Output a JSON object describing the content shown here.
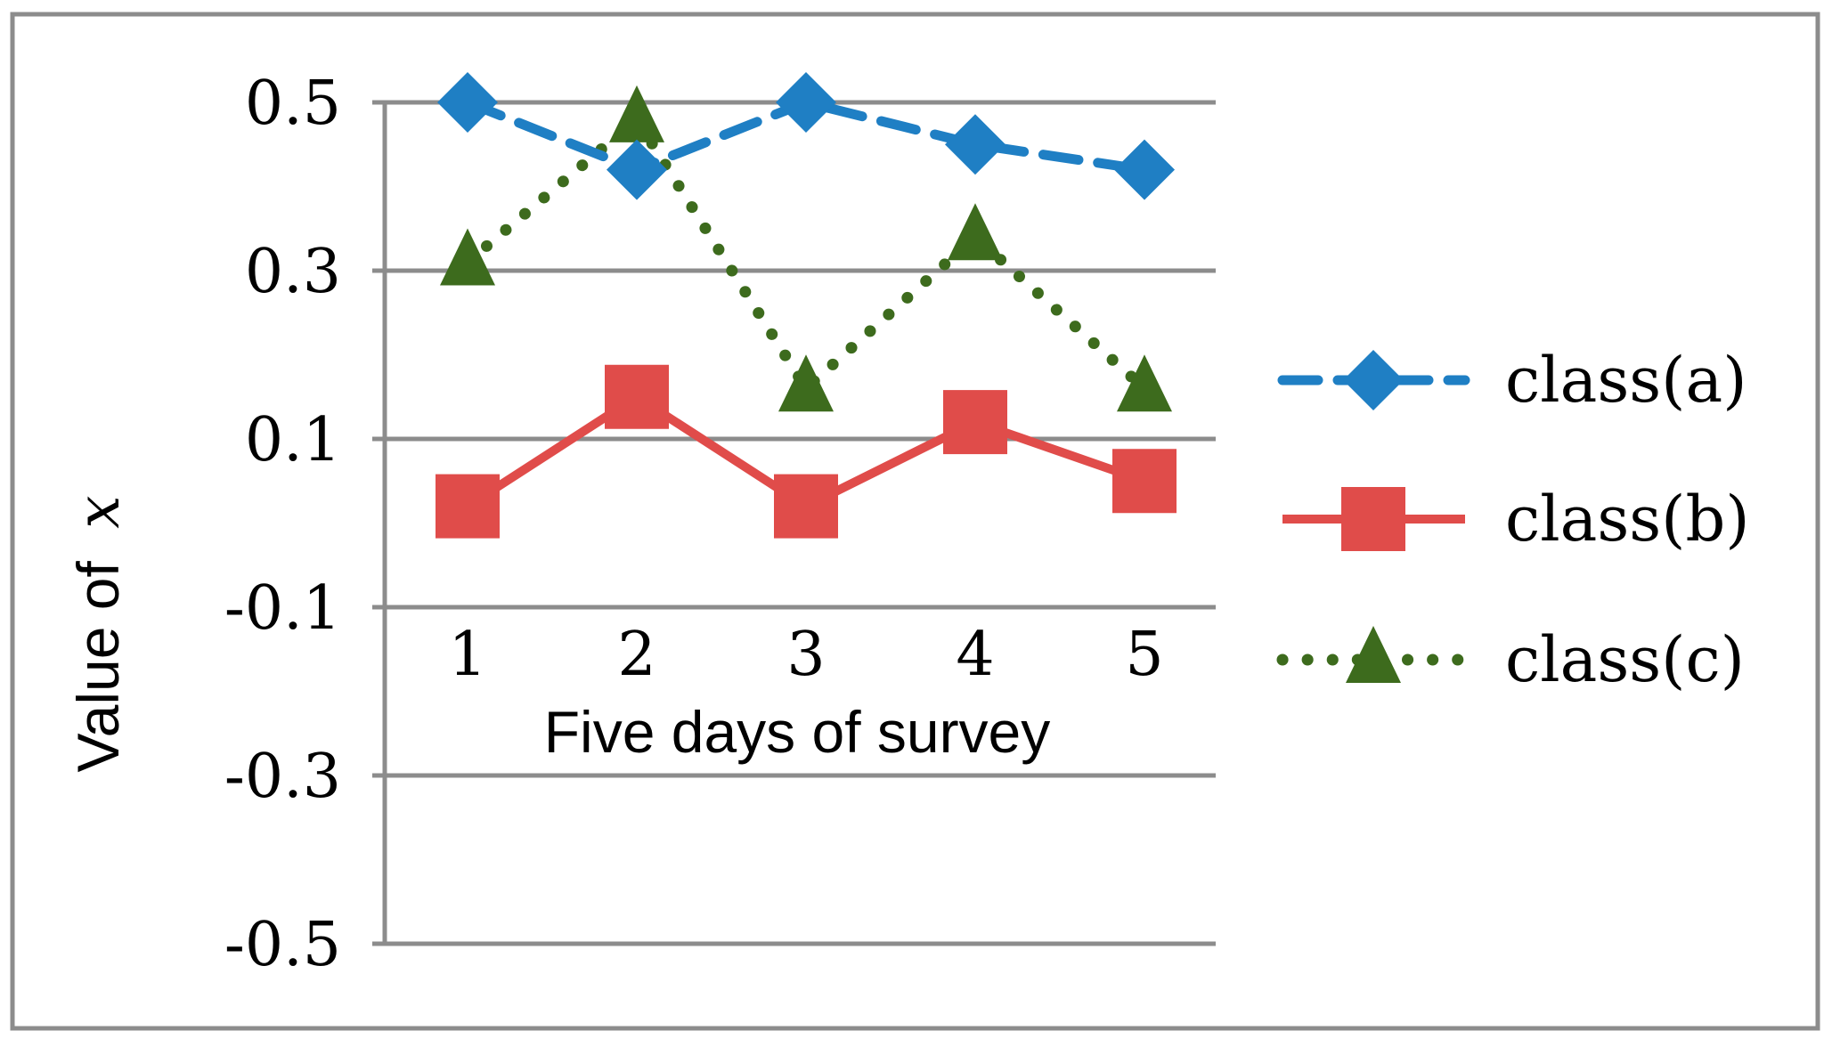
{
  "chart_data": {
    "type": "line",
    "title": "",
    "xlabel": "Five days of survey",
    "ylabel_text": "Value of",
    "ylabel_var": "x",
    "categories": [
      "1",
      "2",
      "3",
      "4",
      "5"
    ],
    "ylim": [
      -0.5,
      0.5
    ],
    "yticks": [
      0.5,
      0.3,
      0.1,
      -0.1,
      -0.3,
      -0.5
    ],
    "ytick_labels": [
      "0.5",
      "0.3",
      "0.1",
      "-0.1",
      "-0.3",
      "-0.5"
    ],
    "grid": true,
    "legend_position": "right",
    "series": [
      {
        "name": "class(a)",
        "values": [
          0.5,
          0.42,
          0.5,
          0.45,
          0.42
        ],
        "color": "#1f7fc4",
        "line_style": "dashed",
        "marker": "diamond"
      },
      {
        "name": "class(b)",
        "values": [
          0.02,
          0.15,
          0.02,
          0.12,
          0.05
        ],
        "color": "#e04c4a",
        "line_style": "solid",
        "marker": "square"
      },
      {
        "name": "class(c)",
        "values": [
          0.31,
          0.48,
          0.16,
          0.34,
          0.16
        ],
        "color": "#3d6b1d",
        "line_style": "dotted",
        "marker": "triangle"
      }
    ]
  }
}
